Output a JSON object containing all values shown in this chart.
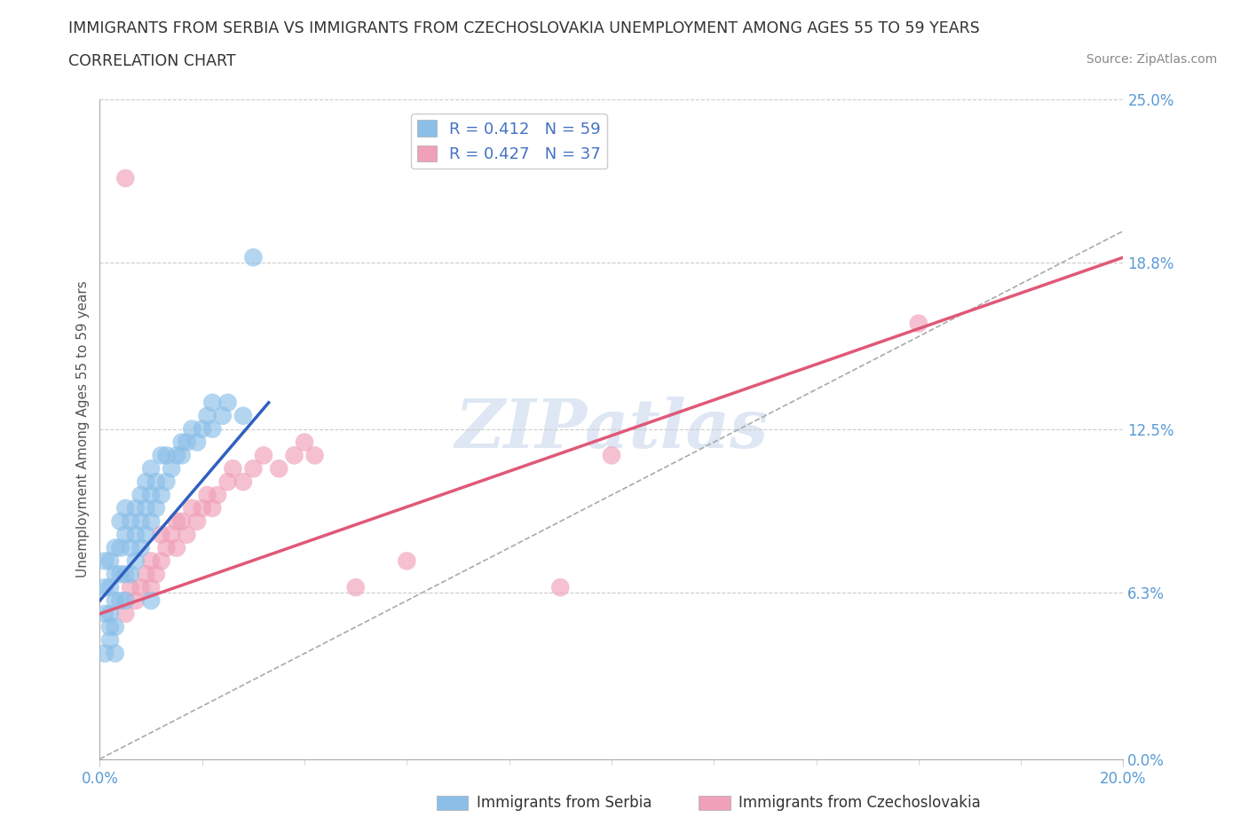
{
  "title_line1": "IMMIGRANTS FROM SERBIA VS IMMIGRANTS FROM CZECHOSLOVAKIA UNEMPLOYMENT AMONG AGES 55 TO 59 YEARS",
  "title_line2": "CORRELATION CHART",
  "source_text": "Source: ZipAtlas.com",
  "ylabel": "Unemployment Among Ages 55 to 59 years",
  "xlim": [
    0.0,
    0.2
  ],
  "ylim": [
    0.0,
    0.25
  ],
  "xtick_labels": [
    "0.0%",
    "20.0%"
  ],
  "xtick_positions": [
    0.0,
    0.2
  ],
  "ytick_labels": [
    "25.0%",
    "18.8%",
    "12.5%",
    "6.3%",
    "0.0%"
  ],
  "ytick_positions": [
    0.25,
    0.188,
    0.125,
    0.063,
    0.0
  ],
  "serbia_color": "#8BBFE8",
  "czechoslovakia_color": "#F0A0B8",
  "serbia_line_color": "#3060C0",
  "czechoslovakia_line_color": "#E05878",
  "serbia_R": 0.412,
  "serbia_N": 59,
  "czechoslovakia_R": 0.427,
  "czechoslovakia_N": 37,
  "watermark": "ZIPatlas",
  "background_color": "#FFFFFF",
  "grid_color": "#CCCCCC",
  "tick_color": "#5B9BD5",
  "serbia_x": [
    0.001,
    0.001,
    0.001,
    0.001,
    0.002,
    0.002,
    0.002,
    0.002,
    0.002,
    0.003,
    0.003,
    0.003,
    0.003,
    0.003,
    0.004,
    0.004,
    0.004,
    0.004,
    0.005,
    0.005,
    0.005,
    0.005,
    0.006,
    0.006,
    0.006,
    0.007,
    0.007,
    0.007,
    0.008,
    0.008,
    0.008,
    0.009,
    0.009,
    0.009,
    0.01,
    0.01,
    0.01,
    0.011,
    0.011,
    0.012,
    0.012,
    0.013,
    0.013,
    0.014,
    0.015,
    0.016,
    0.016,
    0.017,
    0.018,
    0.019,
    0.02,
    0.021,
    0.022,
    0.022,
    0.024,
    0.025,
    0.028,
    0.03,
    0.01
  ],
  "serbia_y": [
    0.04,
    0.055,
    0.065,
    0.075,
    0.045,
    0.055,
    0.065,
    0.075,
    0.05,
    0.05,
    0.06,
    0.07,
    0.08,
    0.04,
    0.06,
    0.07,
    0.08,
    0.09,
    0.06,
    0.07,
    0.085,
    0.095,
    0.07,
    0.08,
    0.09,
    0.075,
    0.085,
    0.095,
    0.08,
    0.09,
    0.1,
    0.085,
    0.095,
    0.105,
    0.09,
    0.1,
    0.11,
    0.095,
    0.105,
    0.1,
    0.115,
    0.105,
    0.115,
    0.11,
    0.115,
    0.12,
    0.115,
    0.12,
    0.125,
    0.12,
    0.125,
    0.13,
    0.125,
    0.135,
    0.13,
    0.135,
    0.13,
    0.19,
    0.06
  ],
  "serbia_line_x": [
    0.0,
    0.033
  ],
  "serbia_line_y": [
    0.06,
    0.135
  ],
  "czechoslovakia_x": [
    0.005,
    0.006,
    0.007,
    0.008,
    0.009,
    0.01,
    0.01,
    0.011,
    0.012,
    0.012,
    0.013,
    0.014,
    0.015,
    0.015,
    0.016,
    0.017,
    0.018,
    0.019,
    0.02,
    0.021,
    0.022,
    0.023,
    0.025,
    0.026,
    0.028,
    0.03,
    0.032,
    0.035,
    0.038,
    0.04,
    0.042,
    0.05,
    0.06,
    0.09,
    0.1,
    0.16,
    0.005
  ],
  "czechoslovakia_y": [
    0.055,
    0.065,
    0.06,
    0.065,
    0.07,
    0.065,
    0.075,
    0.07,
    0.075,
    0.085,
    0.08,
    0.085,
    0.09,
    0.08,
    0.09,
    0.085,
    0.095,
    0.09,
    0.095,
    0.1,
    0.095,
    0.1,
    0.105,
    0.11,
    0.105,
    0.11,
    0.115,
    0.11,
    0.115,
    0.12,
    0.115,
    0.065,
    0.075,
    0.065,
    0.115,
    0.165,
    0.22
  ],
  "czechoslovakia_line_x": [
    0.0,
    0.2
  ],
  "czechoslovakia_line_y": [
    0.055,
    0.19
  ]
}
